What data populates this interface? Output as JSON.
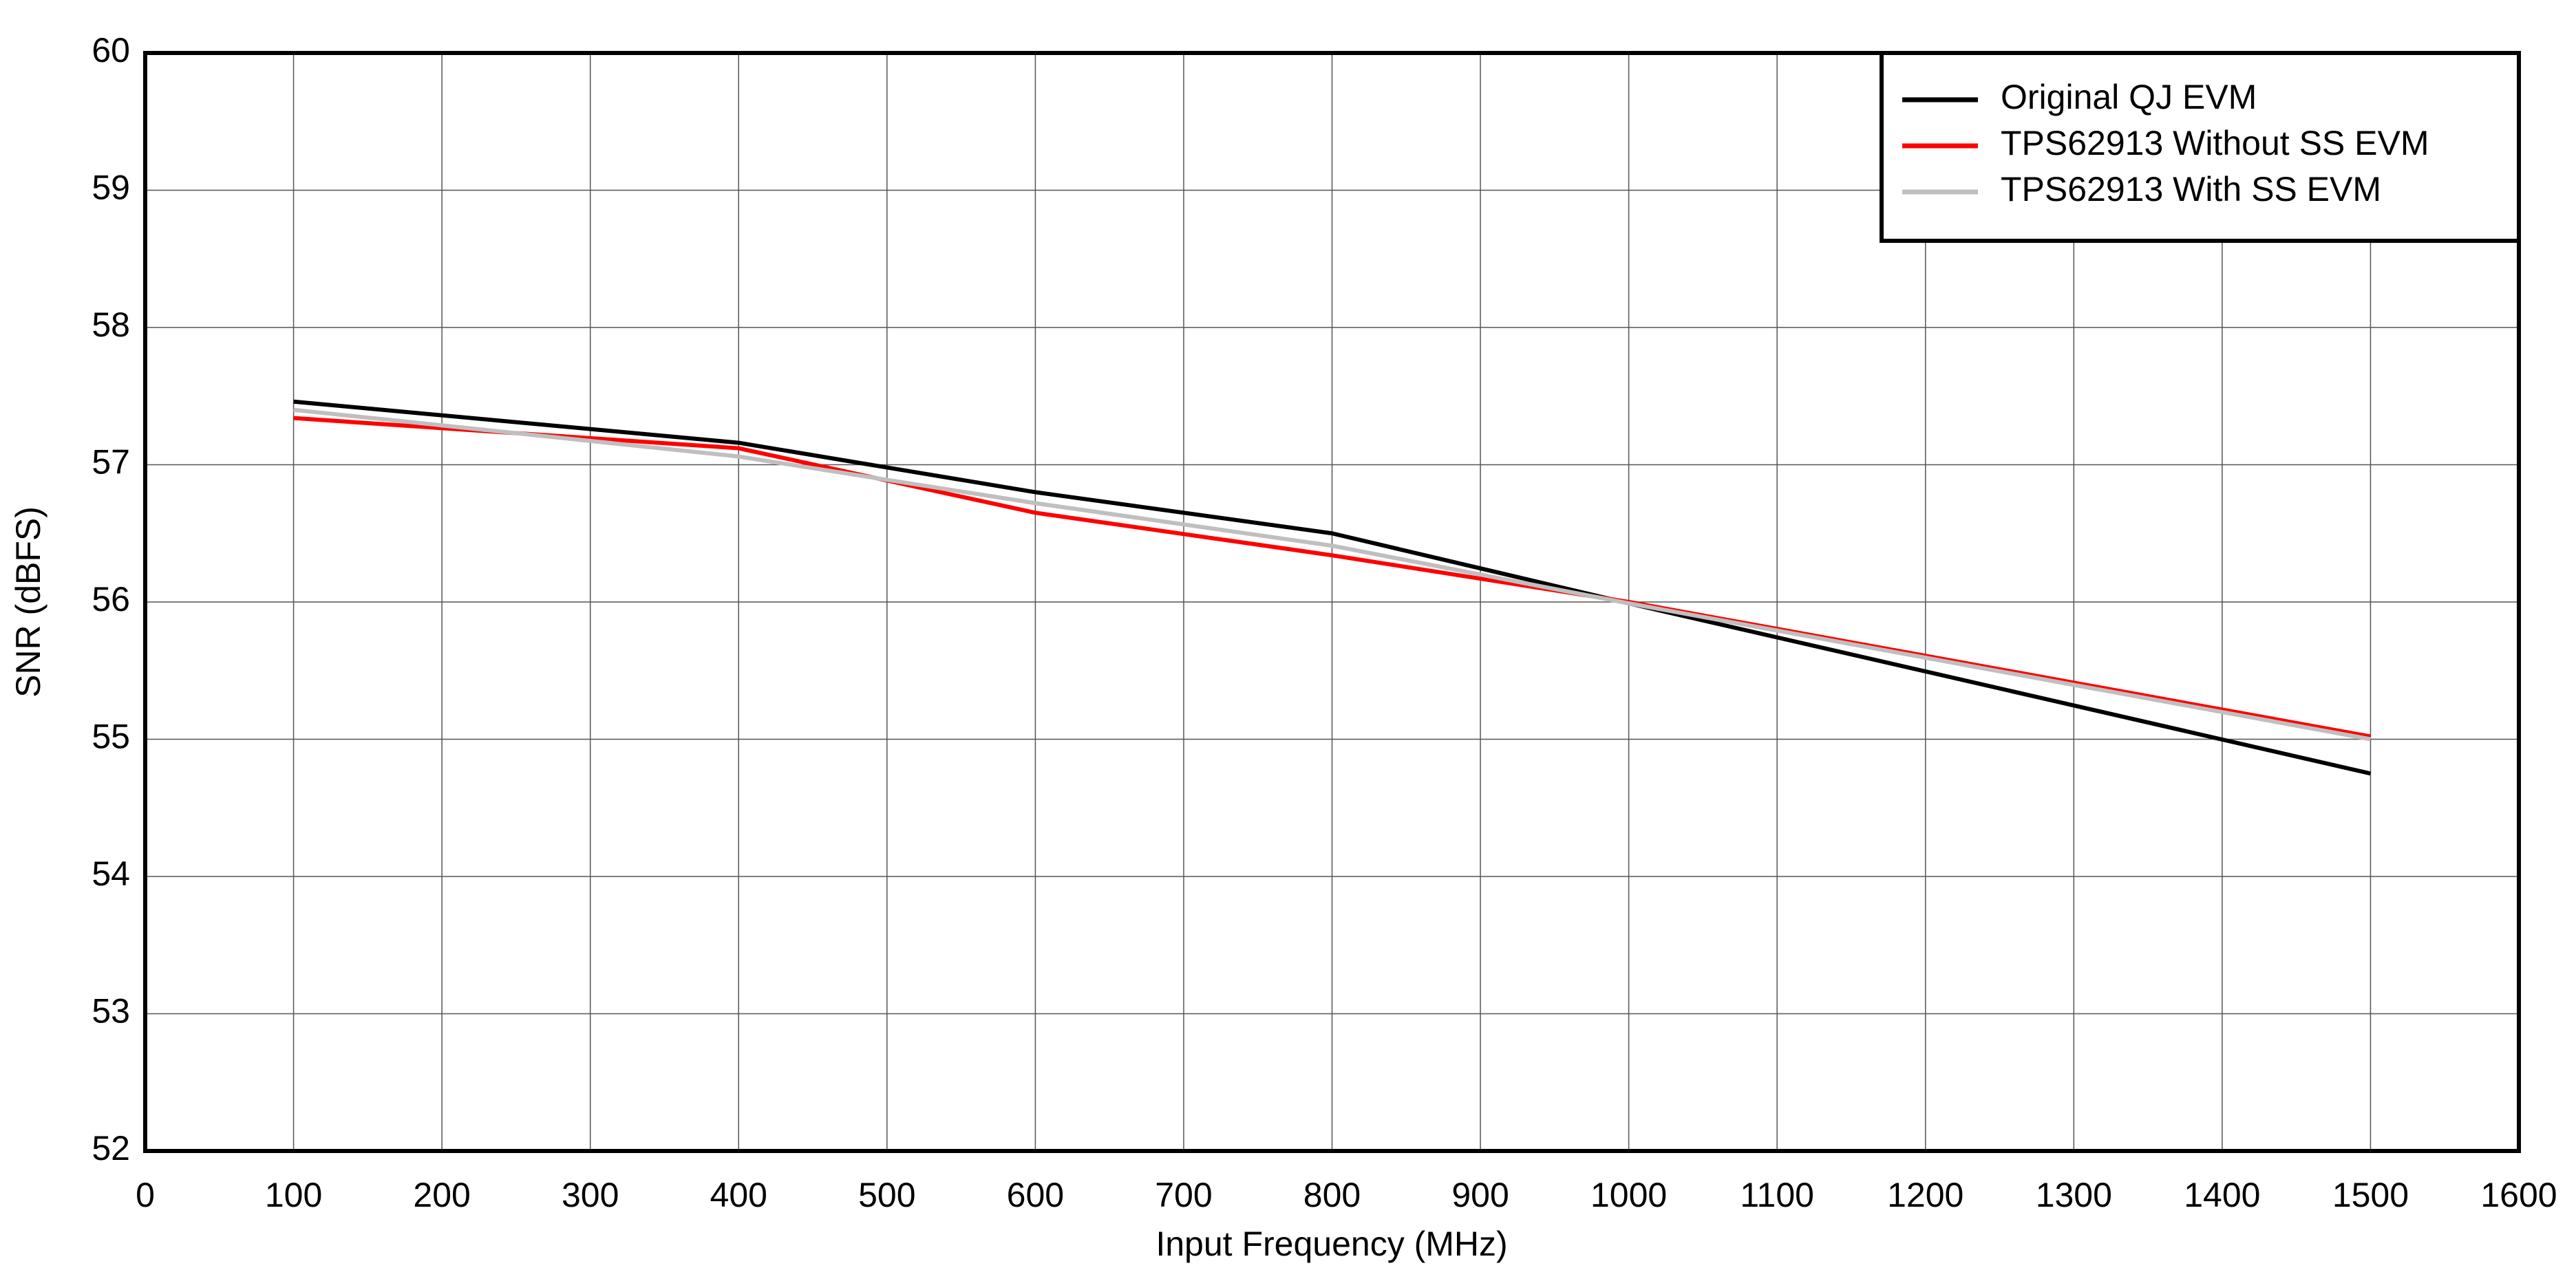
{
  "chart_data": {
    "type": "line",
    "x_label": "Input Frequency (MHz)",
    "y_label": "SNR (dBFS)",
    "x": [
      100,
      400,
      600,
      800,
      1000,
      1500
    ],
    "series": [
      {
        "name": "Original QJ EVM",
        "color": "#000000",
        "values": [
          57.46,
          57.16,
          56.8,
          56.5,
          55.99,
          54.75
        ]
      },
      {
        "name": "TPS62913 Without SS EVM",
        "color": "#ff0000",
        "values": [
          57.34,
          57.12,
          56.65,
          56.34,
          56.0,
          55.02
        ]
      },
      {
        "name": "TPS62913 With SS EVM",
        "color": "#bfbfbf",
        "values": [
          57.4,
          57.06,
          56.72,
          56.41,
          55.99,
          55.0
        ]
      }
    ],
    "xlim": [
      0,
      1600
    ],
    "xticks": [
      0,
      100,
      200,
      300,
      400,
      500,
      600,
      700,
      800,
      900,
      1000,
      1100,
      1200,
      1300,
      1400,
      1500,
      1600
    ],
    "ylim": [
      52,
      60
    ],
    "yticks": [
      52,
      53,
      54,
      55,
      56,
      57,
      58,
      59,
      60
    ],
    "grid": true,
    "legend": "top-right"
  }
}
